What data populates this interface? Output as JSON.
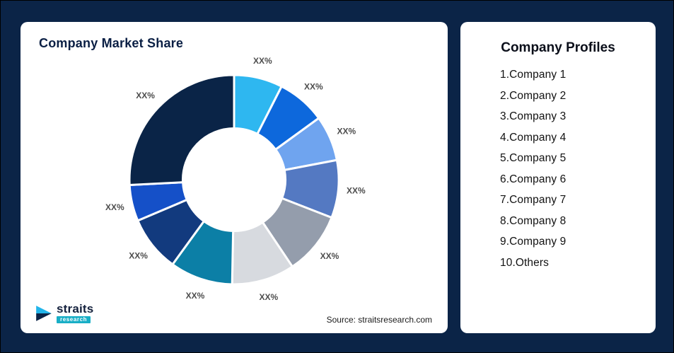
{
  "page": {
    "background": "#0B2447"
  },
  "market_share_card": {
    "title": "Company Market Share",
    "source": "Source: straitsresearch.com"
  },
  "logo": {
    "name": "straits",
    "sub": "research"
  },
  "profiles_card": {
    "title": "Company Profiles",
    "items": [
      "1.Company 1",
      "2.Company 2",
      "3.Company 3",
      "4.Company 4",
      "5.Company 5",
      "6.Company 6",
      "7.Company 7",
      "8.Company 8",
      "9.Company 9",
      "10.Others"
    ]
  },
  "chart_data": {
    "type": "pie",
    "subtype": "donut",
    "title": "Company Market Share",
    "inner_radius_ratio": 0.49,
    "start_angle_deg": 0,
    "direction": "clockwise",
    "legend": "none",
    "note": "All segment data labels display placeholder text XX%; angular sizes estimated from pixels",
    "segments": [
      {
        "label": "XX%",
        "color": "#2EB7F0",
        "value_pct_est": 7.5
      },
      {
        "label": "XX%",
        "color": "#0D68DC",
        "value_pct_est": 7.5
      },
      {
        "label": "XX%",
        "color": "#6FA4EF",
        "value_pct_est": 7.0
      },
      {
        "label": "XX%",
        "color": "#5479C2",
        "value_pct_est": 8.9
      },
      {
        "label": "XX%",
        "color": "#949DAC",
        "value_pct_est": 9.7
      },
      {
        "label": "XX%",
        "color": "#D7DADF",
        "value_pct_est": 9.7
      },
      {
        "label": "XX%",
        "color": "#0C7FA6",
        "value_pct_est": 9.7
      },
      {
        "label": "XX%",
        "color": "#123A7E",
        "value_pct_est": 8.6
      },
      {
        "label": "XX%",
        "color": "#1550C8",
        "value_pct_est": 5.6
      },
      {
        "label": "XX%",
        "color": "#0A2447",
        "value_pct_est": 25.8
      }
    ]
  }
}
